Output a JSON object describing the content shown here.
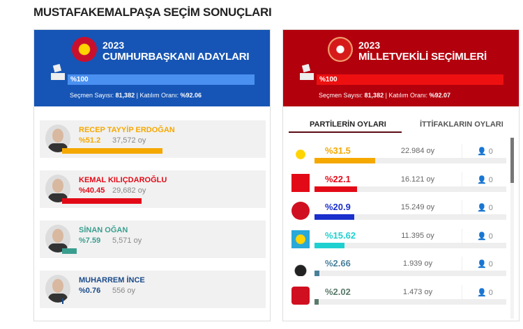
{
  "page_title": "MUSTAFAKEMALPAŞA SEÇİM SONUÇLARI",
  "president": {
    "year": "2023",
    "title": "CUMHURBAŞKANI ADAYLARI",
    "progress": "%100",
    "progress_value": 100,
    "stats_label": "Seçmen Sayısı:",
    "voters": "81,382",
    "sep": "|",
    "turnout_label": "Katılım Oranı:",
    "turnout": "%92.06",
    "color": "#1565c0",
    "candidates": [
      {
        "name": "RECEP TAYYİP ERDOĞAN",
        "pct": "%51.2",
        "votes": "37,572 oy",
        "value": 51.2,
        "color": "#f5a800"
      },
      {
        "name": "KEMAL KILIÇDAROĞLU",
        "pct": "%40.45",
        "votes": "29,682 oy",
        "value": 40.45,
        "color": "#e30a17"
      },
      {
        "name": "SİNAN OĞAN",
        "pct": "%7.59",
        "votes": "5,571 oy",
        "value": 7.59,
        "color": "#3a9e8f"
      },
      {
        "name": "MUHARREM İNCE",
        "pct": "%0.76",
        "votes": "556 oy",
        "value": 0.76,
        "color": "#1a4a8a"
      }
    ]
  },
  "parliament": {
    "year": "2023",
    "title": "MİLLETVEKİLİ SEÇİMLERİ",
    "progress": "%100",
    "progress_value": 100,
    "stats_label": "Seçmen Sayısı:",
    "voters": "81,382",
    "sep": "|",
    "turnout_label": "Katılım Oranı:",
    "turnout": "%92.07",
    "color": "#c0000f",
    "tabs": [
      {
        "label": "PARTİLERİN OYLARI",
        "active": true
      },
      {
        "label": "İTTİFAKLARIN OYLARI",
        "active": false
      }
    ],
    "parties": [
      {
        "logo": "akp-bulb-icon",
        "pct": "%31.5",
        "votes": "22.984 oy",
        "seats": "0",
        "value": 31.5,
        "color": "#f5a800"
      },
      {
        "logo": "chp-arrows-icon",
        "pct": "%22.1",
        "votes": "16.121 oy",
        "seats": "0",
        "value": 22.1,
        "color": "#e30a17"
      },
      {
        "logo": "mhp-crescents-icon",
        "pct": "%20.9",
        "votes": "15.249 oy",
        "seats": "0",
        "value": 20.9,
        "color": "#1a2fcc"
      },
      {
        "logo": "iyi-sun-icon",
        "pct": "%15.62",
        "votes": "11.395 oy",
        "seats": "0",
        "value": 15.62,
        "color": "#1fd0d0"
      },
      {
        "logo": "ysp-flame-icon",
        "pct": "%2.66",
        "votes": "1.939 oy",
        "seats": "0",
        "value": 2.66,
        "color": "#4a7f9a"
      },
      {
        "logo": "yrp-crescent-icon",
        "pct": "%2.02",
        "votes": "1.473 oy",
        "seats": "0",
        "value": 2.02,
        "color": "#5a7a6a"
      }
    ]
  }
}
